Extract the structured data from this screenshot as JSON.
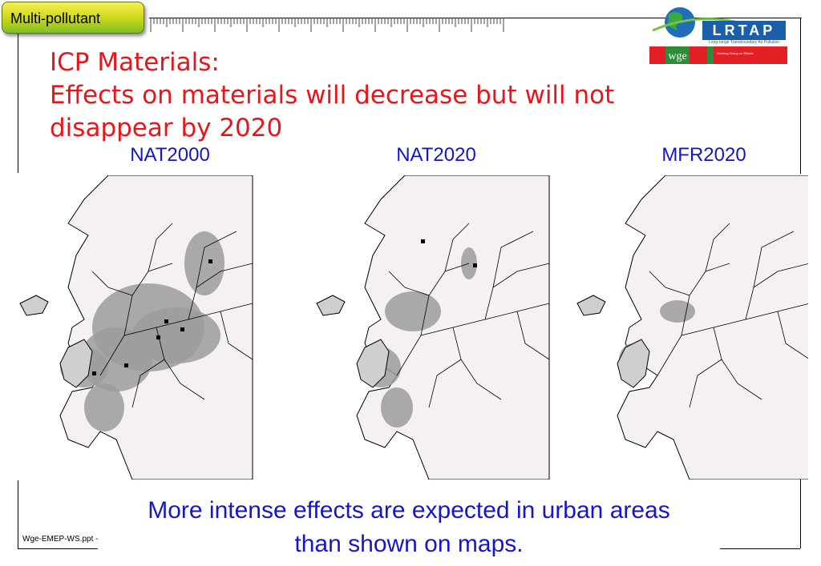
{
  "tag": {
    "label": "Multi-pollutant"
  },
  "title": {
    "line1": "ICP Materials:",
    "line2": "Effects on materials will decrease but will not",
    "line3": "disappear by 2020"
  },
  "logo": {
    "lrtap_text": "LRTAP",
    "lrtap_subtitle": "Long-range Transboundary Air Pollution",
    "wge_text": "wge",
    "wge_detail": "Working Group on Effects"
  },
  "maps": [
    {
      "label": "NAT2000",
      "impact_level": "high"
    },
    {
      "label": "NAT2020",
      "impact_level": "medium"
    },
    {
      "label": "MFR2020",
      "impact_level": "low"
    }
  ],
  "caption": {
    "line1": "More intense effects are expected in urban areas",
    "line2": "than shown on maps."
  },
  "footer": {
    "text": "Wge-EMEP-WS.ppt -"
  },
  "colors": {
    "title": "#e8151b",
    "map_label": "#1414c8",
    "caption": "#1616c8",
    "map_background": "#f4f0f4",
    "effect_light": "#cfcfcf",
    "effect_dark": "#9c9c9c"
  }
}
